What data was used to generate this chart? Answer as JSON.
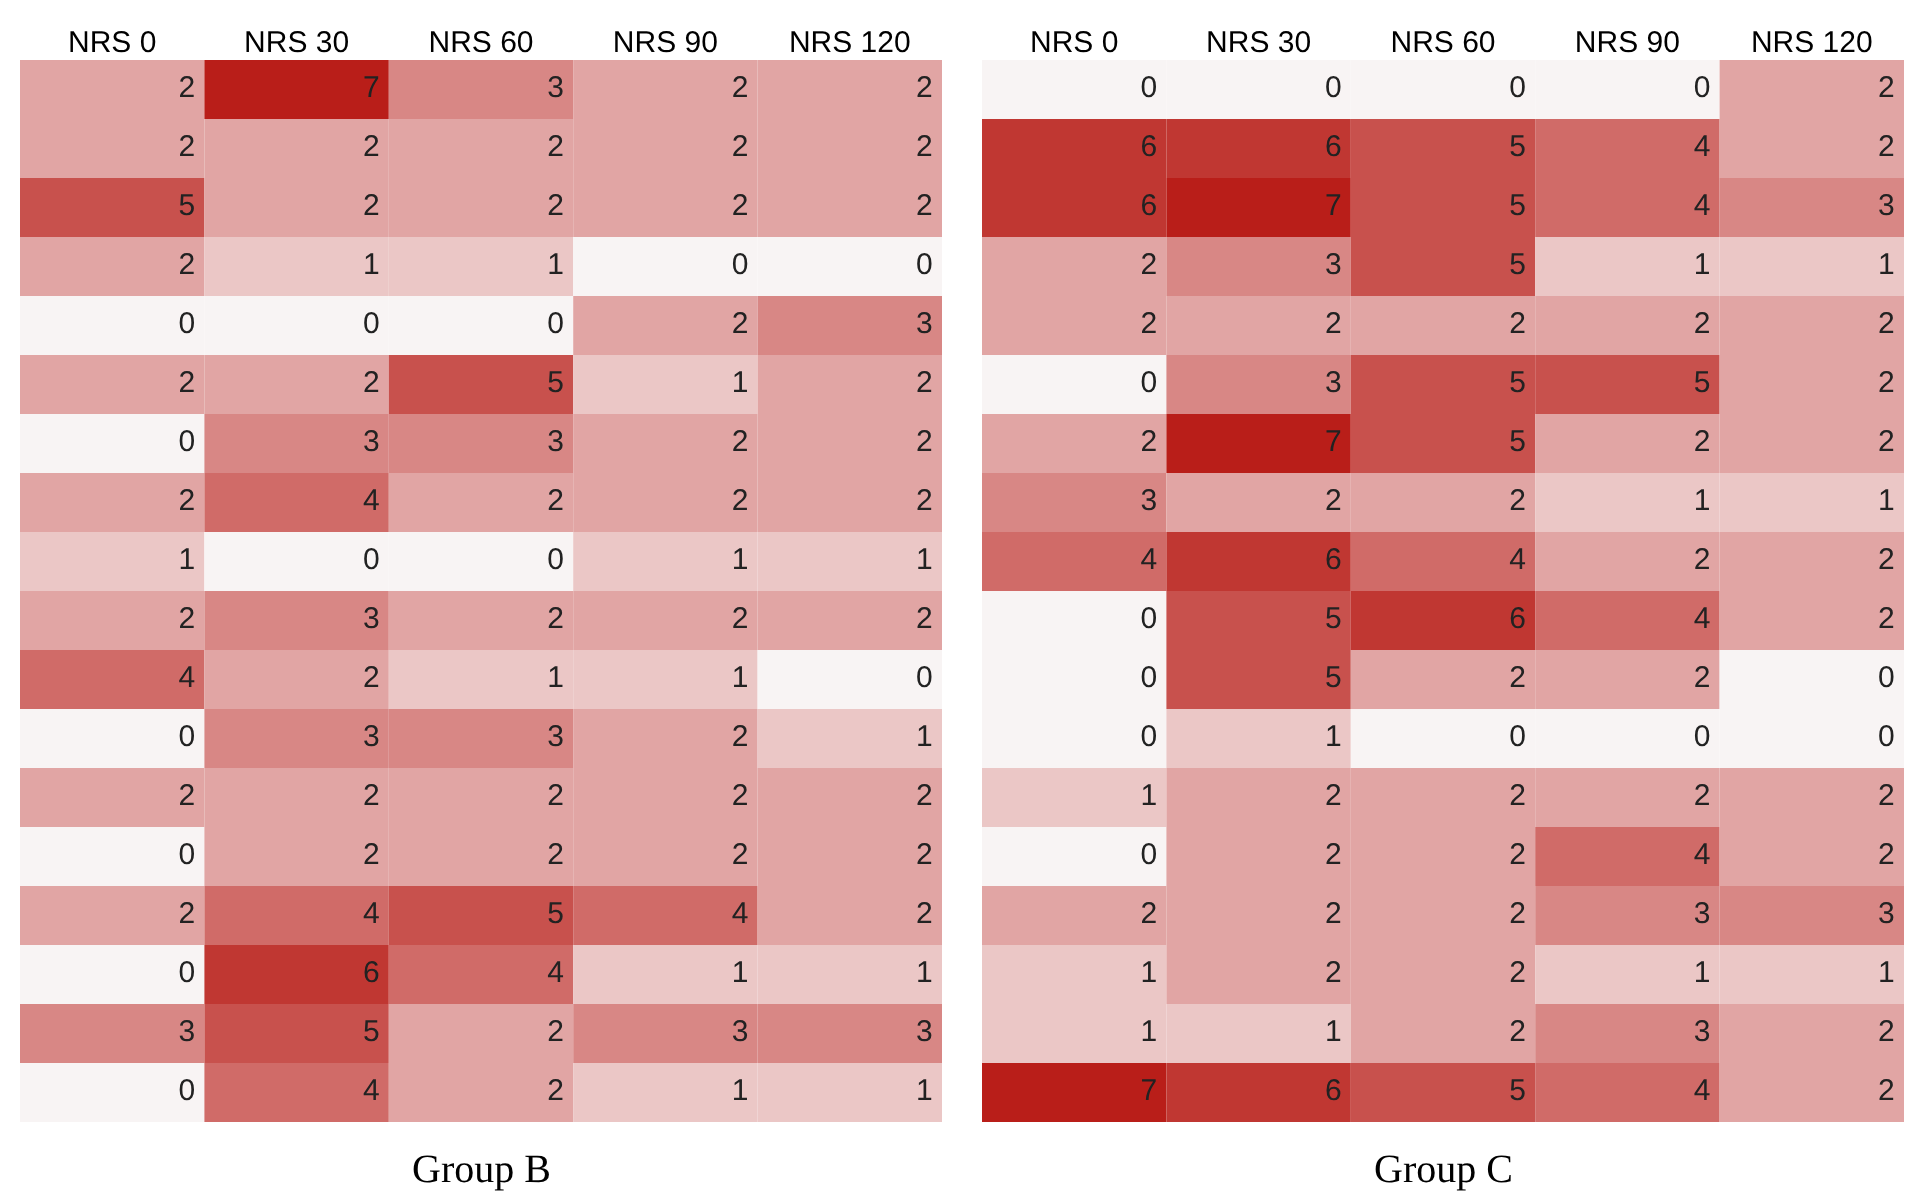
{
  "chart_data": [
    {
      "type": "heatmap",
      "xlabel": "Group B",
      "data_labels": true,
      "y_categories": [
        null,
        null,
        null,
        null,
        null,
        null,
        null,
        null,
        null,
        null,
        null,
        null,
        null,
        null,
        null,
        null,
        null,
        null
      ],
      "categories": [
        "NRS 0",
        "NRS 30",
        "NRS 60",
        "NRS 90",
        "NRS 120"
      ],
      "cells": [
        [
          2,
          7,
          3,
          2,
          2
        ],
        [
          2,
          2,
          2,
          2,
          2
        ],
        [
          5,
          2,
          2,
          2,
          2
        ],
        [
          2,
          1,
          1,
          0,
          0
        ],
        [
          0,
          0,
          0,
          2,
          3
        ],
        [
          2,
          2,
          5,
          1,
          2
        ],
        [
          0,
          3,
          3,
          2,
          2
        ],
        [
          2,
          4,
          2,
          2,
          2
        ],
        [
          1,
          0,
          0,
          1,
          1
        ],
        [
          2,
          3,
          2,
          2,
          2
        ],
        [
          4,
          2,
          1,
          1,
          0
        ],
        [
          0,
          3,
          3,
          2,
          1
        ],
        [
          2,
          2,
          2,
          2,
          2
        ],
        [
          0,
          2,
          2,
          2,
          2
        ],
        [
          2,
          4,
          5,
          4,
          2
        ],
        [
          0,
          6,
          4,
          1,
          1
        ],
        [
          3,
          5,
          2,
          3,
          3
        ],
        [
          0,
          4,
          2,
          1,
          1
        ]
      ]
    },
    {
      "type": "heatmap",
      "xlabel": "Group C",
      "data_labels": true,
      "y_categories": [
        null,
        null,
        null,
        null,
        null,
        null,
        null,
        null,
        null,
        null,
        null,
        null,
        null,
        null,
        null,
        null,
        null,
        null
      ],
      "categories": [
        "NRS 0",
        "NRS 30",
        "NRS 60",
        "NRS 90",
        "NRS 120"
      ],
      "cells": [
        [
          0,
          0,
          0,
          0,
          2
        ],
        [
          6,
          6,
          5,
          4,
          2
        ],
        [
          6,
          7,
          5,
          4,
          3
        ],
        [
          2,
          3,
          5,
          1,
          1
        ],
        [
          2,
          2,
          2,
          2,
          2
        ],
        [
          0,
          3,
          5,
          5,
          2
        ],
        [
          2,
          7,
          5,
          2,
          2
        ],
        [
          3,
          2,
          2,
          1,
          1
        ],
        [
          4,
          6,
          4,
          2,
          2
        ],
        [
          0,
          5,
          6,
          4,
          2
        ],
        [
          0,
          5,
          2,
          2,
          0
        ],
        [
          0,
          1,
          0,
          0,
          0
        ],
        [
          1,
          2,
          2,
          2,
          2
        ],
        [
          0,
          2,
          2,
          4,
          2
        ],
        [
          2,
          2,
          2,
          3,
          3
        ],
        [
          1,
          2,
          2,
          1,
          1
        ],
        [
          1,
          1,
          2,
          3,
          2
        ],
        [
          7,
          6,
          5,
          4,
          2
        ]
      ]
    }
  ]
}
